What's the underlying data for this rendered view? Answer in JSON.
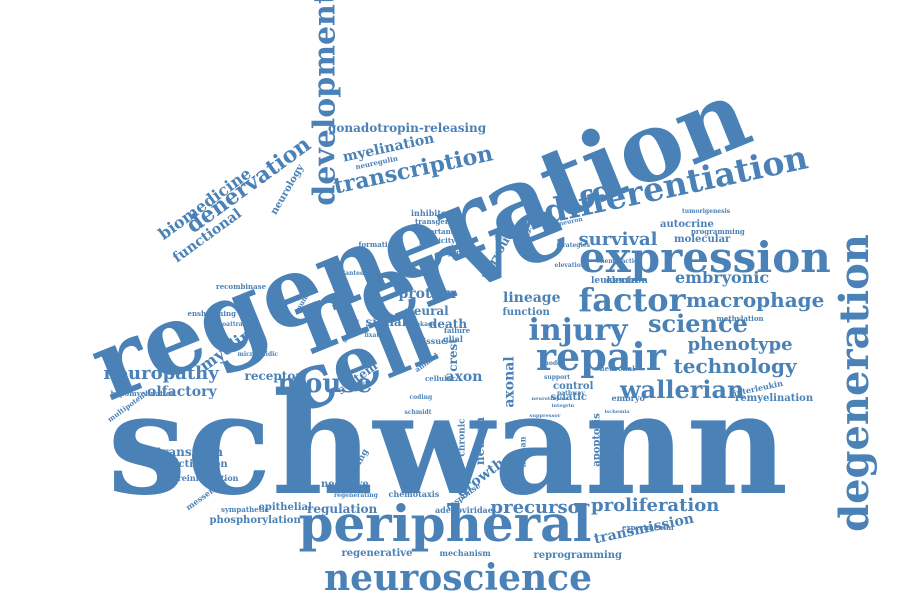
{
  "color": "#4a81b6",
  "words": [
    {
      "id": "schwann",
      "text": "schwann"
    },
    {
      "id": "regeneration",
      "text": "regeneration"
    },
    {
      "id": "nerve",
      "text": "nerve"
    },
    {
      "id": "cell",
      "text": "cell"
    },
    {
      "id": "peripheral",
      "text": "peripheral"
    },
    {
      "id": "neuroscience",
      "text": "neuroscience"
    },
    {
      "id": "expression",
      "text": "expression"
    },
    {
      "id": "degeneration",
      "text": "degeneration"
    },
    {
      "id": "development",
      "text": "development"
    },
    {
      "id": "differentiation",
      "text": "differentiation"
    },
    {
      "id": "repair",
      "text": "repair"
    },
    {
      "id": "factor",
      "text": "factor"
    },
    {
      "id": "injury",
      "text": "injury"
    },
    {
      "id": "science",
      "text": "science"
    },
    {
      "id": "mouse",
      "text": "mouse"
    },
    {
      "id": "wallerian",
      "text": "wallerian"
    },
    {
      "id": "macrophage",
      "text": "macrophage"
    },
    {
      "id": "transcription",
      "text": "transcription"
    },
    {
      "id": "denervation",
      "text": "denervation"
    },
    {
      "id": "biomedicine",
      "text": "biomedicine"
    },
    {
      "id": "myelination",
      "text": "myelination"
    },
    {
      "id": "technology",
      "text": "technology"
    },
    {
      "id": "phenotype",
      "text": "phenotype"
    },
    {
      "id": "neuropathy",
      "text": "neuropathy"
    },
    {
      "id": "precursor",
      "text": "precursor"
    },
    {
      "id": "proliferation",
      "text": "proliferation"
    },
    {
      "id": "survival",
      "text": "survival"
    },
    {
      "id": "embryonic",
      "text": "embryonic"
    },
    {
      "id": "myelin",
      "text": "myelin"
    },
    {
      "id": "gonadotropin",
      "text": "gonadotropin-releasing"
    },
    {
      "id": "lineage",
      "text": "lineage"
    },
    {
      "id": "transmission",
      "text": "transmission"
    },
    {
      "id": "growth",
      "text": "growth"
    },
    {
      "id": "axon",
      "text": "axon"
    },
    {
      "id": "olfactory",
      "text": "olfactory"
    },
    {
      "id": "functional",
      "text": "functional"
    },
    {
      "id": "neurology",
      "text": "neurology"
    },
    {
      "id": "protein",
      "text": "protein"
    },
    {
      "id": "neural",
      "text": "neural"
    },
    {
      "id": "receptor",
      "text": "receptor"
    },
    {
      "id": "system",
      "text": "system"
    },
    {
      "id": "signal",
      "text": "signal"
    },
    {
      "id": "death",
      "text": "death"
    },
    {
      "id": "axonal",
      "text": "axonal"
    },
    {
      "id": "neuron",
      "text": "neuron"
    },
    {
      "id": "crest",
      "text": "crest"
    },
    {
      "id": "nervous",
      "text": "nervous"
    },
    {
      "id": "transition",
      "text": "transition"
    },
    {
      "id": "activation",
      "text": "activation"
    },
    {
      "id": "negative",
      "text": "negative"
    },
    {
      "id": "regulation",
      "text": "regulation"
    },
    {
      "id": "epithelial",
      "text": "epithelial"
    },
    {
      "id": "phosphorylation",
      "text": "phosphorylation"
    },
    {
      "id": "regenerative",
      "text": "regenerative"
    },
    {
      "id": "mechanism",
      "text": "mechanism"
    },
    {
      "id": "reprogramming",
      "text": "reprogramming"
    },
    {
      "id": "molecular",
      "text": "molecular"
    },
    {
      "id": "autocrine",
      "text": "autocrine"
    },
    {
      "id": "apoptosis",
      "text": "apoptosis"
    },
    {
      "id": "remyelination",
      "text": "remyelination"
    },
    {
      "id": "interleukin",
      "text": "interleukin"
    },
    {
      "id": "sciatic",
      "text": "sciatic"
    },
    {
      "id": "control",
      "text": "control"
    },
    {
      "id": "function",
      "text": "function"
    },
    {
      "id": "electron",
      "text": "electron"
    },
    {
      "id": "leukemia",
      "text": "leukemia"
    },
    {
      "id": "embryo",
      "text": "embryo"
    },
    {
      "id": "human",
      "text": "human"
    },
    {
      "id": "chronic",
      "text": "chronic"
    },
    {
      "id": "response",
      "text": "response"
    },
    {
      "id": "signaling",
      "text": "signaling"
    },
    {
      "id": "adenoviridae",
      "text": "adenoviridae"
    },
    {
      "id": "chemotaxis",
      "text": "chemotaxis"
    },
    {
      "id": "messenger",
      "text": "messenger"
    },
    {
      "id": "reinnervation",
      "text": "reinnervation"
    },
    {
      "id": "sympathetic",
      "text": "sympathetic"
    },
    {
      "id": "neuregulin",
      "text": "neuregulin"
    },
    {
      "id": "inhibitory",
      "text": "inhibitory"
    },
    {
      "id": "recombinase",
      "text": "recombinase"
    },
    {
      "id": "ensheathing",
      "text": "ensheathing"
    },
    {
      "id": "multipotent",
      "text": "multipotent"
    },
    {
      "id": "hypomyelination",
      "text": "hypomyelination"
    },
    {
      "id": "microfluidic",
      "text": "microfluidic"
    },
    {
      "id": "chemoattractant",
      "text": "chemoattractant"
    },
    {
      "id": "tumorigenesis",
      "text": "tumorigenesis"
    },
    {
      "id": "programming",
      "text": "programming"
    },
    {
      "id": "methylation",
      "text": "methylation"
    },
    {
      "id": "experimental",
      "text": "experimental"
    },
    {
      "id": "regenerating",
      "text": "regenerating"
    },
    {
      "id": "recovery",
      "text": "recovery"
    },
    {
      "id": "motoneuron",
      "text": "motoneuron"
    },
    {
      "id": "transgenic",
      "text": "transgenic"
    },
    {
      "id": "important",
      "text": "important"
    },
    {
      "id": "plasticity",
      "text": "plasticity"
    },
    {
      "id": "formation",
      "text": "formation"
    },
    {
      "id": "junction",
      "text": "junction"
    },
    {
      "id": "tissue",
      "text": "tissue"
    },
    {
      "id": "glial",
      "text": "glial"
    },
    {
      "id": "failure",
      "text": "failure"
    },
    {
      "id": "cellular",
      "text": "cellular"
    },
    {
      "id": "animal",
      "text": "animal"
    },
    {
      "id": "number",
      "text": "number"
    },
    {
      "id": "fixation",
      "text": "fixation"
    },
    {
      "id": "implanted",
      "text": "implanted"
    },
    {
      "id": "leakage",
      "text": "leakage"
    },
    {
      "id": "analysis",
      "text": "analysis"
    },
    {
      "id": "chicken",
      "text": "chicken"
    },
    {
      "id": "coding",
      "text": "coding"
    },
    {
      "id": "adaptive",
      "text": "adaptive"
    },
    {
      "id": "schmidt",
      "text": "schmidt"
    },
    {
      "id": "support",
      "text": "support"
    },
    {
      "id": "elevation",
      "text": "elevation"
    },
    {
      "id": "chemotactic",
      "text": "chemotactic"
    },
    {
      "id": "neuronal",
      "text": "neuronal"
    },
    {
      "id": "pathway",
      "text": "pathway"
    },
    {
      "id": "strategies",
      "text": "strategies"
    },
    {
      "id": "model",
      "text": "model"
    },
    {
      "id": "integrin",
      "text": "integrin"
    },
    {
      "id": "suppressor",
      "text": "suppressor"
    },
    {
      "id": "ischemia",
      "text": "ischemia"
    },
    {
      "id": "neurotrophic",
      "text": "neurotrophic"
    }
  ]
}
